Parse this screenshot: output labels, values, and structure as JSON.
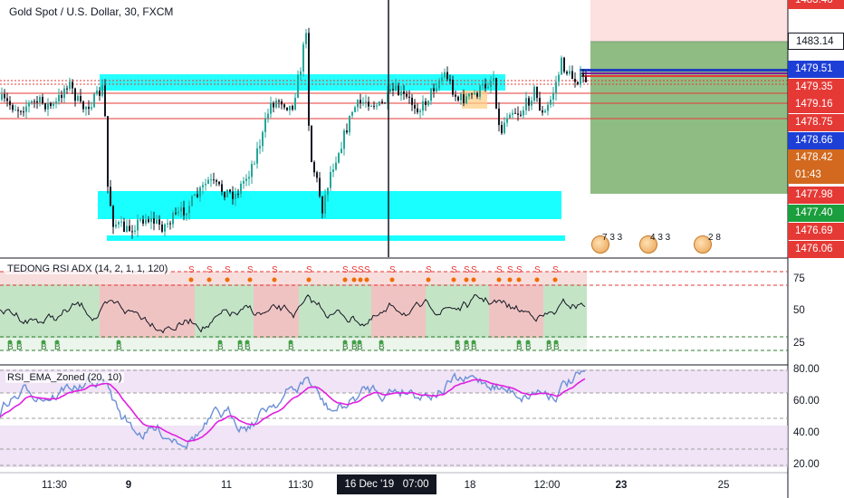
{
  "header": {
    "title": "Gold Spot / U.S. Dollar, 30, FXCM"
  },
  "indicators": {
    "tedong_label": "TEDONG RSI ADX (14, 2, 1, 1, 120)",
    "rsi_zoned_label": "RSI_EMA_Zoned (20, 10)"
  },
  "price_axis": {
    "top_partial": "1483.46",
    "labels": [
      {
        "text": "1483.14",
        "style": "plain"
      },
      {
        "text": "1479.51",
        "style": "blue"
      },
      {
        "text": "1479.35",
        "style": "red"
      },
      {
        "text": "1479.16",
        "style": "red"
      },
      {
        "text": "1478.75",
        "style": "red"
      },
      {
        "text": "1478.66",
        "style": "blue"
      },
      {
        "text": "1478.42",
        "style": "orange"
      },
      {
        "text": "01:43",
        "style": "orange"
      },
      {
        "text": "1477.98",
        "style": "red"
      },
      {
        "text": "1477.40",
        "style": "green"
      },
      {
        "text": "1476.69",
        "style": "red"
      },
      {
        "text": "1476.06",
        "style": "red"
      }
    ]
  },
  "tedong_axis": [
    "75",
    "50",
    "25"
  ],
  "rsi_axis": [
    "80.00",
    "60.00",
    "40.00",
    "20.00"
  ],
  "time_axis": [
    {
      "text": "11:30",
      "bold": false
    },
    {
      "text": "9",
      "bold": true
    },
    {
      "text": "11",
      "bold": false
    },
    {
      "text": "11:30",
      "bold": false
    },
    {
      "text": "18",
      "bold": false
    },
    {
      "text": "12:00",
      "bold": false
    },
    {
      "text": "23",
      "bold": true
    },
    {
      "text": "25",
      "bold": false
    }
  ],
  "crosshair": {
    "date": "16 Dec '19",
    "time": "07:00"
  },
  "event_flags": [
    {
      "count": "7 3 3"
    },
    {
      "count": "4 3 3"
    },
    {
      "count": "2 8"
    }
  ],
  "signal_markers": {
    "sell": "S",
    "buy": "B"
  },
  "colors": {
    "up_candle": "#26a69a",
    "down_candle": "#131722",
    "zone_cyan": "#00ffff",
    "support_resistance": "#e53935",
    "target_green": "#5b9c4f",
    "stop_pink": "#f8d7d7",
    "rsi_line": "#e020e0",
    "rsi_blue": "#6c8fd6",
    "crosshair": "#131722"
  }
}
